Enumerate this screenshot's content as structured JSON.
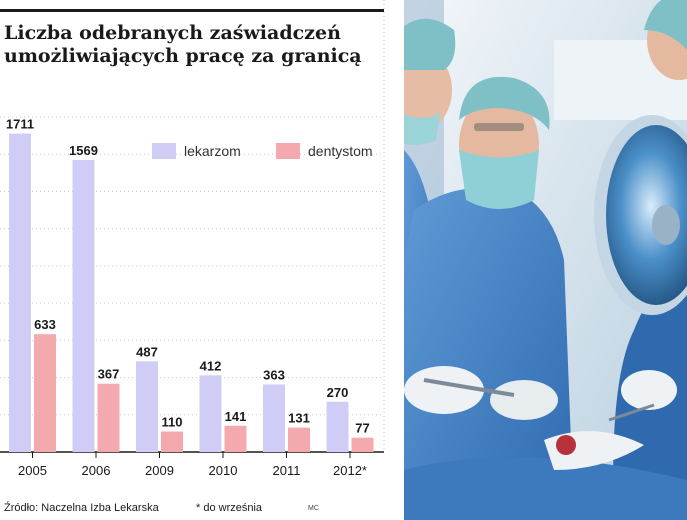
{
  "chart_data": {
    "type": "bar",
    "title_lines": [
      "Liczba odebranych zaświadczeń",
      "umożliwiających pracę za granicą"
    ],
    "categories": [
      "2005",
      "2006",
      "2009",
      "2010",
      "2011",
      "2012*"
    ],
    "series": [
      {
        "name": "lekarzom",
        "values": [
          1711,
          1569,
          487,
          412,
          363,
          270
        ],
        "color": "#cfcdf6"
      },
      {
        "name": "dentystom",
        "values": [
          633,
          367,
          110,
          141,
          131,
          77
        ],
        "color": "#f4a9ae"
      }
    ],
    "ylim": [
      0,
      1800
    ],
    "grid": true,
    "legend_position": "top-right"
  },
  "footer": {
    "source": "Źródło: Naczelna Izba Lekarska",
    "footnote": "* do września",
    "author_tag": "MC"
  },
  "photo": {
    "subject": "surgeons-operating-room",
    "colors": {
      "background": "#dfe9f0",
      "scrubs": "#3f7fc6",
      "mask": "#8fd0d6",
      "cap": "#7fc0c7",
      "lamp": "#4b90c9",
      "skin": "#e4b9a0",
      "glove": "#eef2f5"
    }
  }
}
